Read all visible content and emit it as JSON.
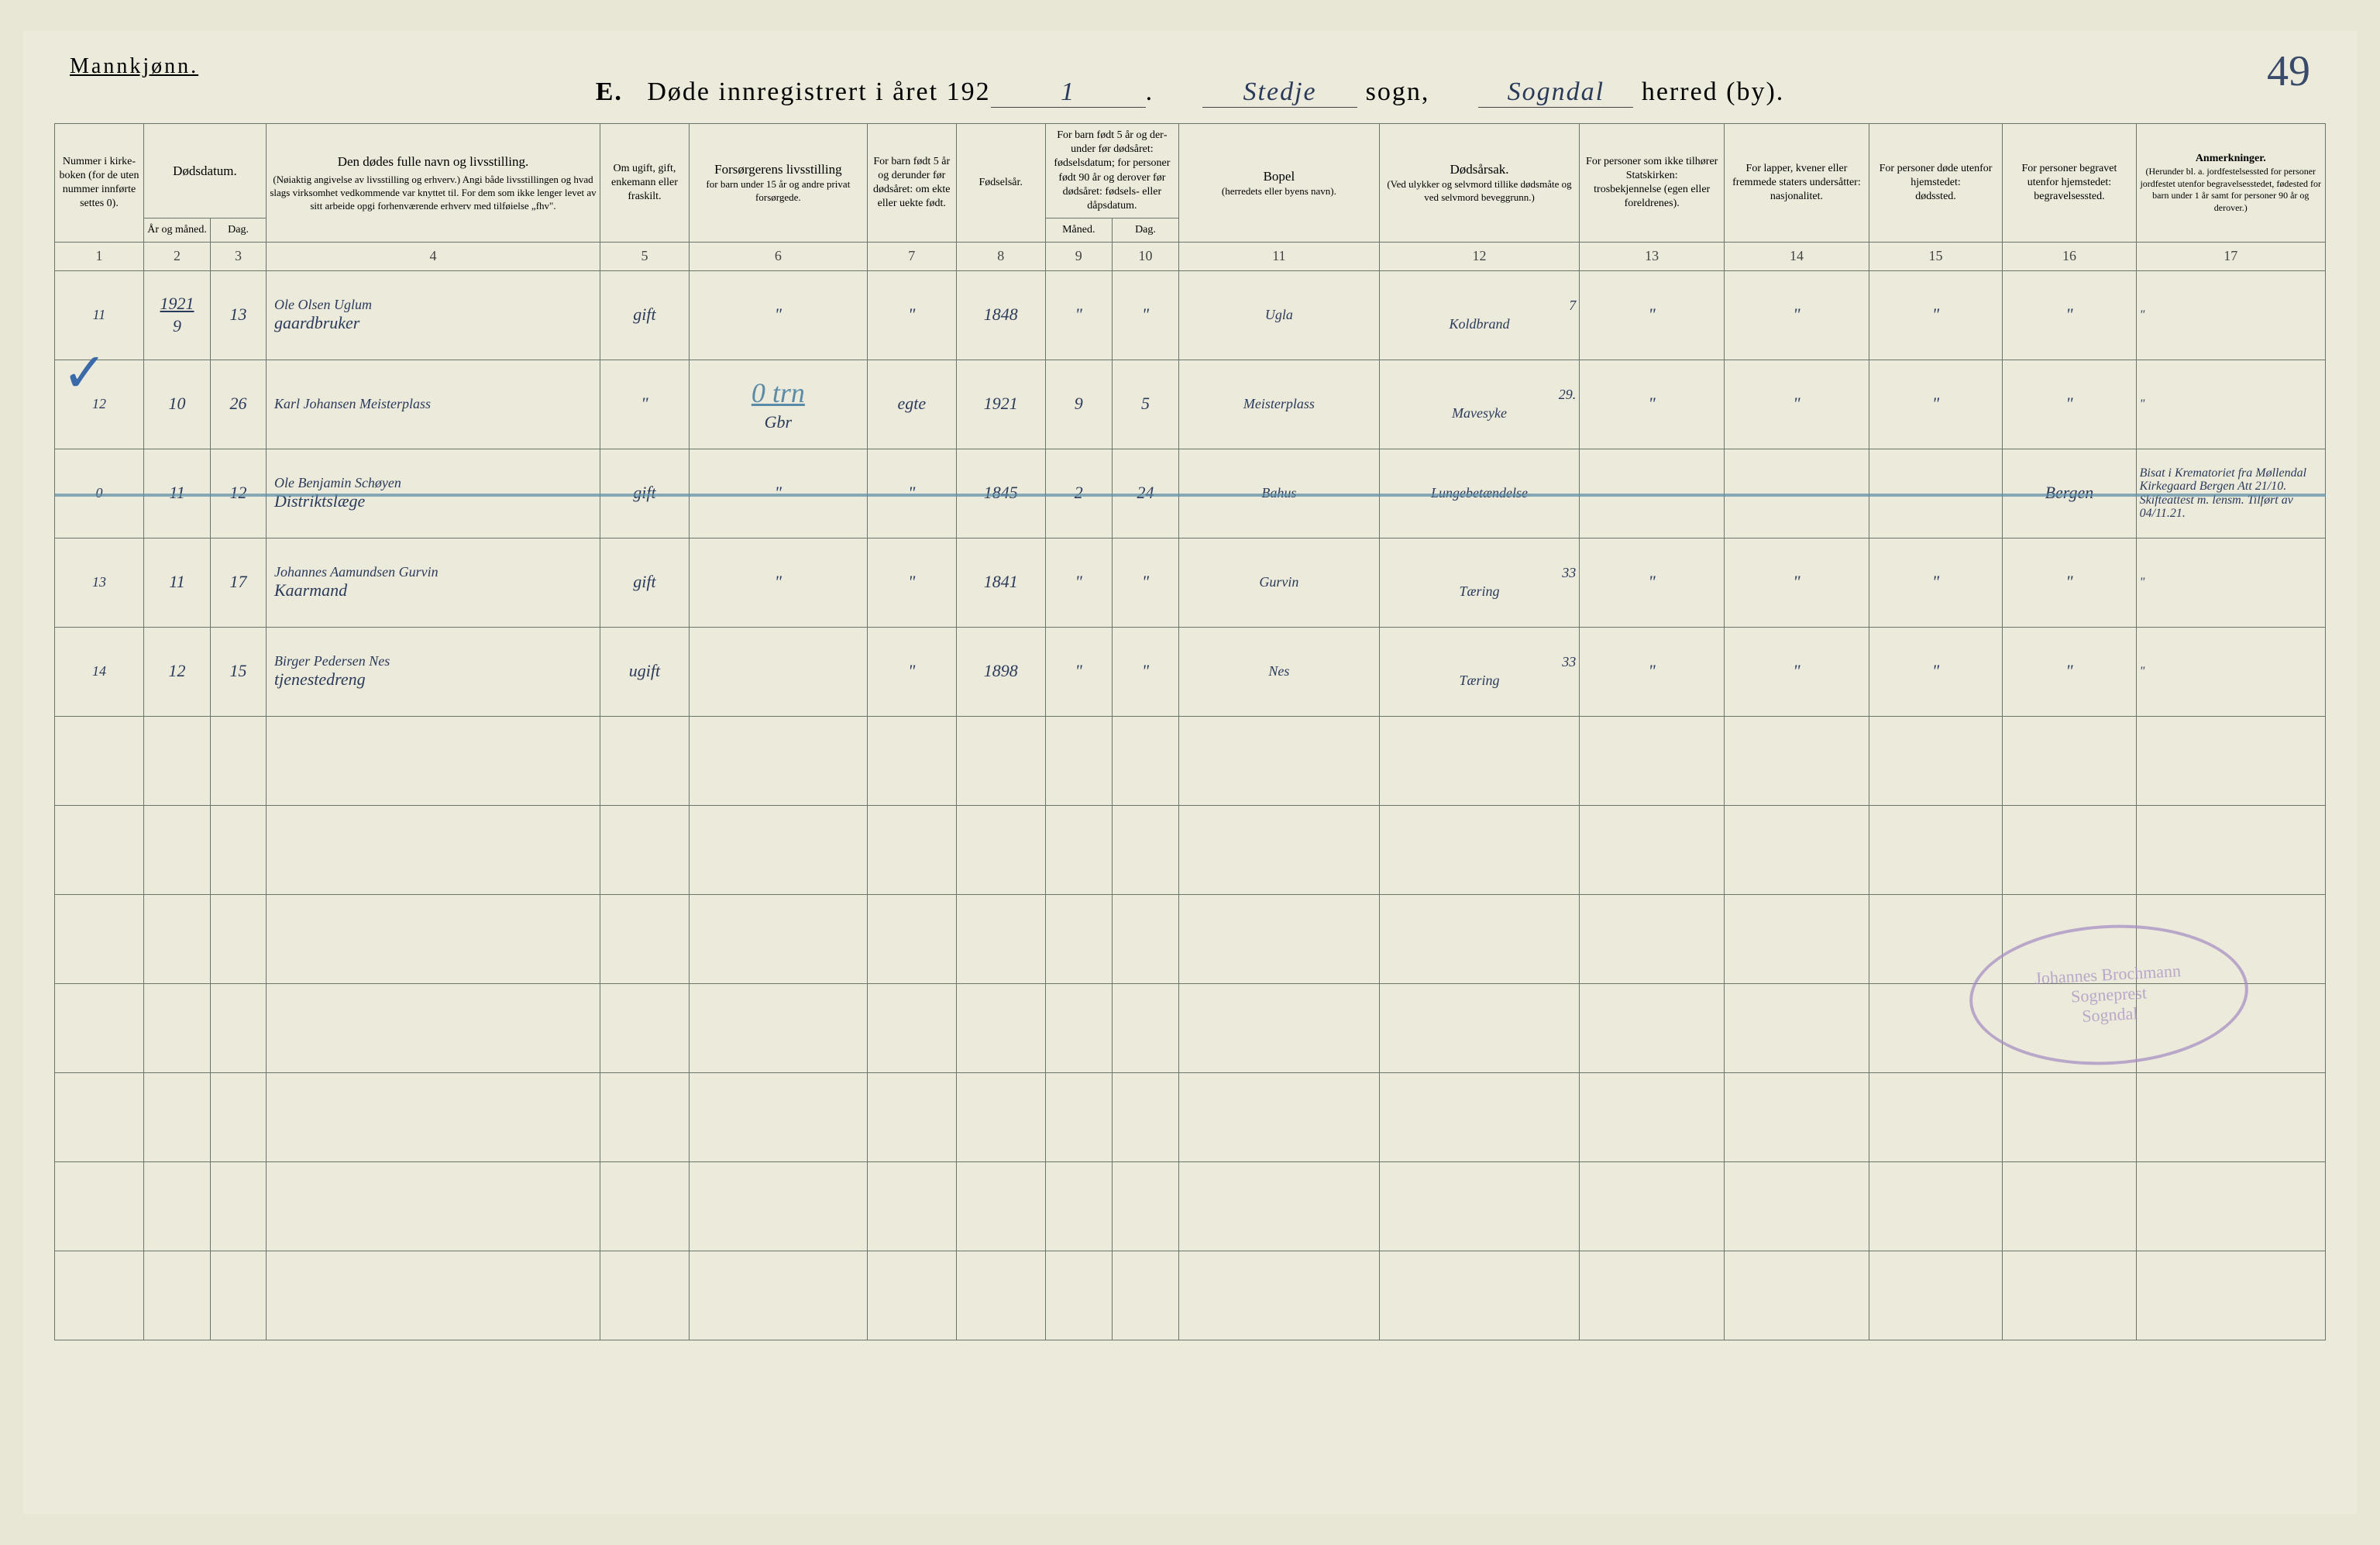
{
  "header": {
    "gender_label": "Mannkjønn.",
    "section_letter": "E.",
    "title_prefix": "Døde innregistrert i året 192",
    "year_suffix": "1",
    "sogn": "Stedje",
    "sogn_label": "sogn,",
    "herred": "Sogndal",
    "herred_label": "herred (by).",
    "page_number": "49"
  },
  "columns": {
    "c1": "Nummer i kirke­boken (for de uten nummer innførte settes 0).",
    "c2a": "Dødsdatum.",
    "c2b": "År og måned.",
    "c2c": "Dag.",
    "c3": "Den dødes fulle navn og livsstilling.",
    "c3sub": "(Nøiaktig angivelse av livsstilling og erhverv.) Angi både livsstillingen og hvad slags virksomhet vedkommende var knyttet til. For dem som ikke lenger levet av sitt arbeide opgi forhenværende erhverv med tilføielse „fhv\".",
    "c4": "Om ugift, gift, enke­mann eller fraskilt.",
    "c5": "Forsørgerens livsstilling",
    "c5sub": "for barn under 15 år og andre privat forsørgede.",
    "c6": "For barn født 5 år og derunder før døds­året: om ekte eller uekte født.",
    "c7": "Fødsels­år.",
    "c8": "For barn født 5 år og der­under før dødsåret: fødselsdatum; for personer født 90 år og derover før dødsåret: fødsels- eller dåpsdatum.",
    "c8a": "Måned.",
    "c8b": "Dag.",
    "c9": "Bopel",
    "c9sub": "(herredets eller byens navn).",
    "c10": "Dødsårsak.",
    "c10sub": "(Ved ulykker og selv­mord tillike dødsmåte og ved selvmord beveggrunn.)",
    "c11": "For personer som ikke tilhører Statskirken:",
    "c11sub": "trosbekjennelse (egen eller foreldrenes).",
    "c12": "For lapper, kvener eller fremmede staters undersåtter:",
    "c12sub": "nasjonalitet.",
    "c13": "For personer døde utenfor hjemstedet:",
    "c13sub": "dødssted.",
    "c14": "For personer begravet utenfor hjemstedet:",
    "c14sub": "begravelsessted.",
    "c15": "Anmerkninger.",
    "c15sub": "(Herunder bl. a. jord­festelsessted for per­soner jordfestet utenfor begravelsesstedet, føde­sted for barn under 1 år samt for personer 90 år og derover.)"
  },
  "colnums": [
    "1",
    "2",
    "3",
    "4",
    "5",
    "6",
    "7",
    "8",
    "9",
    "10",
    "11",
    "12",
    "13",
    "14",
    "15",
    "16",
    "17"
  ],
  "rows": [
    {
      "num": "11",
      "year_mark": "1921",
      "ym": "9",
      "day": "13",
      "name": "Ole Olsen Uglum",
      "occ": "gaardbruker",
      "status": "gift",
      "provider": "\"",
      "legit": "\"",
      "birth": "1848",
      "bm": "\"",
      "bd": "\"",
      "home": "Ugla",
      "cause": "Koldbrand",
      "cause_num": "7",
      "c11": "\"",
      "c12": "\"",
      "c13": "\"",
      "c14": "\"",
      "remark": "\"",
      "struck": false
    },
    {
      "num": "12",
      "ym": "10",
      "day": "26",
      "name": "Karl Johansen Meister­plass",
      "occ": "",
      "status": "\"",
      "provider": "Gbr",
      "legit": "egte",
      "birth": "1921",
      "bm": "9",
      "bd": "5",
      "home": "Meisterplass",
      "cause": "Mavesyke",
      "cause_num": "29.",
      "c11": "\"",
      "c12": "\"",
      "c13": "\"",
      "c14": "\"",
      "remark": "\"",
      "struck": false,
      "blue_note": "0 trn",
      "check": true
    },
    {
      "num": "0",
      "ym": "11",
      "day": "12",
      "name": "Ole Benjamin Schøyen",
      "occ": "Distriktslæge",
      "status": "gift",
      "provider": "\"",
      "legit": "\"",
      "birth": "1845",
      "bm": "2",
      "bd": "24",
      "home": "Bahus",
      "cause": "Lungebetændelse",
      "cause_num": "",
      "c11": "",
      "c12": "",
      "c13": "",
      "c14": "Bergen",
      "remark": "Bisat i Krematoriet fra Møllendal Kirke­gaard Bergen Att 21/10. Skifteattest m. lensm. Tilført av 04/11.21.",
      "struck": true
    },
    {
      "num": "13",
      "ym": "11",
      "day": "17",
      "name": "Johannes Aamundsen Gurvin",
      "occ": "Kaarmand",
      "status": "gift",
      "provider": "\"",
      "legit": "\"",
      "birth": "1841",
      "bm": "\"",
      "bd": "\"",
      "home": "Gurvin",
      "cause": "Tæring",
      "cause_num": "33",
      "c11": "\"",
      "c12": "\"",
      "c13": "\"",
      "c14": "\"",
      "remark": "\"",
      "struck": false
    },
    {
      "num": "14",
      "ym": "12",
      "day": "15",
      "name": "Birger Pedersen Nes",
      "occ": "tjenestedreng",
      "status": "ugift",
      "provider": "",
      "legit": "\"",
      "birth": "1898",
      "bm": "\"",
      "bd": "\"",
      "home": "Nes",
      "cause": "Tæring",
      "cause_num": "33",
      "c11": "\"",
      "c12": "\"",
      "c13": "\"",
      "c14": "\"",
      "remark": "\"",
      "struck": false
    }
  ],
  "stamp": {
    "line1": "Johannes Brochmann",
    "line2": "Sogneprest",
    "line3": "Sogndal"
  },
  "empty_rows": 7,
  "colors": {
    "paper": "#eceadb",
    "rule": "#6a756a",
    "ink": "#2a3a5a",
    "blue": "#5a8ba8",
    "stamp": "#a48bc4"
  }
}
